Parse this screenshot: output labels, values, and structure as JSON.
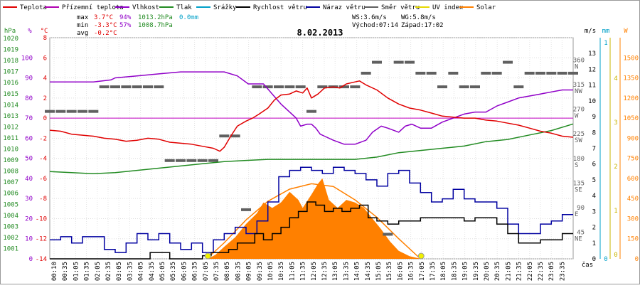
{
  "chart_data": {
    "type": "line",
    "title": "8.02.2013",
    "legend": [
      {
        "label": "Teplota",
        "color": "#e00000"
      },
      {
        "label": "Přízemní teplota",
        "color": "#b000b0"
      },
      {
        "label": "Vlhkost",
        "color": "#9000c8"
      },
      {
        "label": "Tlak",
        "color": "#228b22"
      },
      {
        "label": "Srážky",
        "color": "#00a0c8"
      },
      {
        "label": "Rychlost větru",
        "color": "#000000"
      },
      {
        "label": "Náraz větru",
        "color": "#0000a0"
      },
      {
        "label": "Směr větru",
        "color": "#606060"
      },
      {
        "label": "UV index",
        "color": "#e6d800"
      },
      {
        "label": "Solar",
        "color": "#ff8000"
      }
    ],
    "stats": {
      "max": {
        "label": "max",
        "temp": "3.7°C",
        "hum": "94%",
        "press": "1013.2hPa",
        "rain": "0.0mm"
      },
      "min": {
        "label": "min",
        "temp": "-3.3°C",
        "hum": "57%",
        "press": "1008.7hPa"
      },
      "avg": {
        "label": "avg",
        "temp": "-0.2°C"
      }
    },
    "wind_info": {
      "ws": "WS:3.6m/s",
      "wg": "WG:5.8m/s",
      "sunrise": "Východ:07:14",
      "sunset": "Západ:17:02"
    },
    "axes": {
      "hpa": {
        "label": "hPa",
        "ticks": [
          "1020",
          "1019",
          "1018",
          "1017",
          "1016",
          "1015",
          "1014",
          "1013",
          "1012",
          "1011",
          "1010",
          "1009",
          "1008",
          "1007",
          "1006",
          "1005",
          "1004",
          "1003",
          "1002",
          "1001"
        ],
        "color": "#228b22"
      },
      "pct": {
        "label": "%",
        "ticks": [
          "100",
          "90",
          "80",
          "70",
          "60",
          "50",
          "40",
          "30",
          "20",
          "10",
          "0"
        ],
        "color": "#9000c8"
      },
      "temp": {
        "label": "°C",
        "ticks": [
          "8",
          "6",
          "4",
          "2",
          "0",
          "-2",
          "-4",
          "-6",
          "-8",
          "-10",
          "-12",
          "-14"
        ],
        "color": "#e00000"
      },
      "dir": {
        "ticks": [
          {
            "deg": "360",
            "name": "N"
          },
          {
            "deg": "315",
            "name": "NW"
          },
          {
            "deg": "270",
            "name": "W"
          },
          {
            "deg": "225",
            "name": "SW"
          },
          {
            "deg": "180",
            "name": "S"
          },
          {
            "deg": "135",
            "name": "SE"
          },
          {
            "deg": "90",
            "name": "E"
          },
          {
            "deg": "45",
            "name": "NE"
          },
          {
            "deg": "",
            "name": ""
          }
        ]
      },
      "ms": {
        "label": "m/s",
        "ticks": [
          "13",
          "12",
          "11",
          "10",
          "9",
          "8",
          "7",
          "6",
          "5",
          "4",
          "3",
          "2",
          "1",
          "0"
        ]
      },
      "mm": {
        "label": "mm",
        "ticks": [
          "1",
          "0"
        ],
        "color": "#00a0c8"
      },
      "uv": {
        "ticks": [
          "4",
          "3",
          "2",
          "1",
          "0"
        ],
        "color": "#c8b400"
      },
      "w": {
        "label": "W",
        "ticks": [
          "1500",
          "1350",
          "1200",
          "1050",
          "900",
          "750",
          "600",
          "450",
          "300",
          "150",
          "0"
        ],
        "color": "#ff8000"
      },
      "x_label": "čas",
      "x_ticks": [
        "00:10",
        "00:35",
        "01:05",
        "01:35",
        "02:05",
        "02:35",
        "03:05",
        "03:35",
        "04:05",
        "04:35",
        "05:05",
        "05:35",
        "06:05",
        "06:35",
        "07:05",
        "07:35",
        "08:05",
        "08:35",
        "09:05",
        "09:35",
        "10:05",
        "10:35",
        "11:05",
        "11:35",
        "12:05",
        "12:35",
        "13:05",
        "13:35",
        "14:05",
        "14:35",
        "15:05",
        "15:35",
        "16:05",
        "16:35",
        "17:05",
        "17:35",
        "18:05",
        "18:35",
        "19:05",
        "19:35",
        "20:05",
        "20:35",
        "21:05",
        "21:35",
        "22:05",
        "22:35",
        "23:05",
        "23:35"
      ]
    },
    "xlim": [
      0,
      24
    ],
    "series_units": {
      "temperature": "°C",
      "humidity": "%",
      "pressure": "hPa",
      "wind_speed": "m/s",
      "wind_gust": "m/s",
      "wind_direction": "deg",
      "solar": "W/m2"
    },
    "temperature": [
      [
        0,
        -1.2
      ],
      [
        0.5,
        -1.3
      ],
      [
        1,
        -1.6
      ],
      [
        1.5,
        -1.7
      ],
      [
        2,
        -1.8
      ],
      [
        2.5,
        -2.0
      ],
      [
        3,
        -2.1
      ],
      [
        3.5,
        -2.3
      ],
      [
        4,
        -2.2
      ],
      [
        4.5,
        -2.0
      ],
      [
        5,
        -2.1
      ],
      [
        5.5,
        -2.4
      ],
      [
        6,
        -2.5
      ],
      [
        6.5,
        -2.6
      ],
      [
        7,
        -2.8
      ],
      [
        7.5,
        -3.0
      ],
      [
        7.8,
        -3.3
      ],
      [
        8,
        -2.9
      ],
      [
        8.3,
        -1.8
      ],
      [
        8.6,
        -0.8
      ],
      [
        9,
        -0.3
      ],
      [
        9.3,
        0.0
      ],
      [
        9.6,
        0.4
      ],
      [
        10,
        1.0
      ],
      [
        10.3,
        1.8
      ],
      [
        10.6,
        2.3
      ],
      [
        11,
        2.4
      ],
      [
        11.3,
        2.7
      ],
      [
        11.6,
        2.5
      ],
      [
        11.8,
        3.0
      ],
      [
        12,
        2.0
      ],
      [
        12.3,
        2.4
      ],
      [
        12.6,
        3.0
      ],
      [
        13,
        3.1
      ],
      [
        13.3,
        3.0
      ],
      [
        13.6,
        3.4
      ],
      [
        14,
        3.6
      ],
      [
        14.2,
        3.7
      ],
      [
        14.5,
        3.3
      ],
      [
        15,
        2.8
      ],
      [
        15.5,
        2.0
      ],
      [
        16,
        1.4
      ],
      [
        16.5,
        1.0
      ],
      [
        17,
        0.8
      ],
      [
        17.5,
        0.5
      ],
      [
        18,
        0.2
      ],
      [
        18.5,
        0.1
      ],
      [
        19,
        0.0
      ],
      [
        19.5,
        0.0
      ],
      [
        20,
        -0.2
      ],
      [
        20.5,
        -0.3
      ],
      [
        21,
        -0.5
      ],
      [
        21.5,
        -0.7
      ],
      [
        22,
        -1.0
      ],
      [
        22.5,
        -1.3
      ],
      [
        23,
        -1.5
      ],
      [
        23.5,
        -1.8
      ],
      [
        24,
        -1.9
      ]
    ],
    "humidity": [
      [
        0,
        88
      ],
      [
        1,
        88
      ],
      [
        2,
        88
      ],
      [
        2.8,
        89
      ],
      [
        3,
        90
      ],
      [
        4,
        91
      ],
      [
        5,
        92
      ],
      [
        6,
        93
      ],
      [
        7,
        93
      ],
      [
        8,
        93
      ],
      [
        8.6,
        91
      ],
      [
        9.1,
        87
      ],
      [
        9.8,
        87
      ],
      [
        10.2,
        82
      ],
      [
        10.6,
        77
      ],
      [
        11,
        73
      ],
      [
        11.3,
        70
      ],
      [
        11.5,
        66
      ],
      [
        11.8,
        67
      ],
      [
        12.0,
        67
      ],
      [
        12.2,
        65
      ],
      [
        12.4,
        62
      ],
      [
        12.6,
        61
      ],
      [
        13,
        59
      ],
      [
        13.5,
        57
      ],
      [
        14,
        57
      ],
      [
        14.5,
        59
      ],
      [
        14.8,
        63
      ],
      [
        15.2,
        66
      ],
      [
        15.5,
        65
      ],
      [
        16,
        63
      ],
      [
        16.3,
        66
      ],
      [
        16.6,
        67
      ],
      [
        17,
        65
      ],
      [
        17.5,
        65
      ],
      [
        18,
        68
      ],
      [
        18.5,
        70
      ],
      [
        19,
        72
      ],
      [
        19.5,
        73
      ],
      [
        20,
        73
      ],
      [
        20.5,
        76
      ],
      [
        21,
        78
      ],
      [
        21.5,
        80
      ],
      [
        22,
        81
      ],
      [
        22.5,
        82
      ],
      [
        23,
        83
      ],
      [
        23.5,
        84
      ],
      [
        24,
        84
      ]
    ],
    "pressure": [
      [
        0,
        1008.9
      ],
      [
        1,
        1008.8
      ],
      [
        2,
        1008.7
      ],
      [
        3,
        1008.8
      ],
      [
        4,
        1009.0
      ],
      [
        5,
        1009.2
      ],
      [
        6,
        1009.4
      ],
      [
        7,
        1009.6
      ],
      [
        8,
        1009.8
      ],
      [
        9,
        1009.9
      ],
      [
        10,
        1010.0
      ],
      [
        11,
        1010.0
      ],
      [
        12,
        1010.0
      ],
      [
        13,
        1010.0
      ],
      [
        14,
        1010.0
      ],
      [
        15,
        1010.2
      ],
      [
        16,
        1010.6
      ],
      [
        17,
        1010.8
      ],
      [
        18,
        1011.0
      ],
      [
        19,
        1011.2
      ],
      [
        20,
        1011.6
      ],
      [
        21,
        1011.8
      ],
      [
        22,
        1012.2
      ],
      [
        23,
        1012.6
      ],
      [
        24,
        1013.2
      ]
    ],
    "wind_speed": [
      [
        0,
        0
      ],
      [
        1,
        0
      ],
      [
        2,
        0
      ],
      [
        3,
        0
      ],
      [
        4,
        0
      ],
      [
        4.6,
        0.4
      ],
      [
        5,
        0.4
      ],
      [
        5.5,
        0
      ],
      [
        6,
        0
      ],
      [
        6.5,
        0
      ],
      [
        7,
        0.2
      ],
      [
        7.4,
        0.4
      ],
      [
        7.8,
        0.4
      ],
      [
        8.2,
        0.6
      ],
      [
        8.6,
        1.0
      ],
      [
        9,
        1.0
      ],
      [
        9.4,
        1.6
      ],
      [
        9.8,
        1.2
      ],
      [
        10.2,
        1.6
      ],
      [
        10.6,
        2.0
      ],
      [
        11,
        2.6
      ],
      [
        11.4,
        3.0
      ],
      [
        11.8,
        3.6
      ],
      [
        12.2,
        3.4
      ],
      [
        12.6,
        3.0
      ],
      [
        13,
        3.2
      ],
      [
        13.4,
        3.0
      ],
      [
        13.8,
        3.2
      ],
      [
        14.2,
        3.4
      ],
      [
        14.6,
        2.6
      ],
      [
        15,
        2.4
      ],
      [
        15.5,
        2.2
      ],
      [
        16,
        2.4
      ],
      [
        16.5,
        2.4
      ],
      [
        17,
        2.6
      ],
      [
        17.5,
        2.6
      ],
      [
        18,
        2.6
      ],
      [
        18.5,
        2.6
      ],
      [
        19,
        2.4
      ],
      [
        19.5,
        2.6
      ],
      [
        20,
        2.6
      ],
      [
        20.5,
        2.2
      ],
      [
        21,
        1.6
      ],
      [
        21.5,
        1.0
      ],
      [
        22,
        1.0
      ],
      [
        22.5,
        1.2
      ],
      [
        23,
        1.2
      ],
      [
        23.5,
        1.6
      ],
      [
        24,
        1.6
      ]
    ],
    "wind_gust": [
      [
        0,
        1.2
      ],
      [
        0.5,
        1.4
      ],
      [
        1,
        1.0
      ],
      [
        1.5,
        1.4
      ],
      [
        2,
        1.4
      ],
      [
        2.5,
        0.6
      ],
      [
        3,
        0.4
      ],
      [
        3.5,
        1.0
      ],
      [
        4,
        1.6
      ],
      [
        4.5,
        1.2
      ],
      [
        5,
        1.6
      ],
      [
        5.5,
        1.0
      ],
      [
        6,
        0.6
      ],
      [
        6.5,
        1.0
      ],
      [
        7,
        0.4
      ],
      [
        7.5,
        1.2
      ],
      [
        8,
        1.6
      ],
      [
        8.5,
        2.0
      ],
      [
        9,
        1.6
      ],
      [
        9.5,
        2.4
      ],
      [
        10,
        3.6
      ],
      [
        10.5,
        5.2
      ],
      [
        11,
        5.6
      ],
      [
        11.5,
        5.8
      ],
      [
        12,
        5.6
      ],
      [
        12.5,
        5.4
      ],
      [
        13,
        5.8
      ],
      [
        13.5,
        5.6
      ],
      [
        14,
        5.4
      ],
      [
        14.5,
        5.0
      ],
      [
        15,
        4.6
      ],
      [
        15.5,
        5.4
      ],
      [
        16,
        5.6
      ],
      [
        16.5,
        4.8
      ],
      [
        17,
        4.2
      ],
      [
        17.5,
        3.6
      ],
      [
        18,
        3.8
      ],
      [
        18.5,
        4.4
      ],
      [
        19,
        3.8
      ],
      [
        19.5,
        3.6
      ],
      [
        20,
        3.6
      ],
      [
        20.5,
        3.2
      ],
      [
        21,
        2.2
      ],
      [
        21.5,
        1.6
      ],
      [
        22,
        1.6
      ],
      [
        22.5,
        2.2
      ],
      [
        23,
        2.4
      ],
      [
        23.5,
        2.8
      ],
      [
        24,
        2.8
      ]
    ],
    "wind_direction": [
      [
        0,
        270
      ],
      [
        0.5,
        270
      ],
      [
        1,
        270
      ],
      [
        1.5,
        270
      ],
      [
        2,
        270
      ],
      [
        2.5,
        315
      ],
      [
        3,
        315
      ],
      [
        3.5,
        315
      ],
      [
        4,
        315
      ],
      [
        4.5,
        315
      ],
      [
        5,
        315
      ],
      [
        5.5,
        180
      ],
      [
        6,
        180
      ],
      [
        6.5,
        180
      ],
      [
        7,
        180
      ],
      [
        7.5,
        180
      ],
      [
        8,
        225
      ],
      [
        8.5,
        225
      ],
      [
        9,
        90
      ],
      [
        9.5,
        315
      ],
      [
        10,
        315
      ],
      [
        10.5,
        315
      ],
      [
        11,
        315
      ],
      [
        11.5,
        315
      ],
      [
        12,
        270
      ],
      [
        12.5,
        315
      ],
      [
        13,
        315
      ],
      [
        13.5,
        315
      ],
      [
        14,
        315
      ],
      [
        14.5,
        340
      ],
      [
        15,
        360
      ],
      [
        15.5,
        45
      ],
      [
        16,
        360
      ],
      [
        16.5,
        360
      ],
      [
        17,
        340
      ],
      [
        17.5,
        340
      ],
      [
        18,
        315
      ],
      [
        18.5,
        340
      ],
      [
        19,
        315
      ],
      [
        19.5,
        315
      ],
      [
        20,
        340
      ],
      [
        20.5,
        340
      ],
      [
        21,
        360
      ],
      [
        21.5,
        315
      ],
      [
        22,
        340
      ],
      [
        22.5,
        340
      ],
      [
        23,
        340
      ],
      [
        23.5,
        340
      ],
      [
        24,
        340
      ]
    ],
    "solar": [
      [
        7.25,
        0
      ],
      [
        7.6,
        30
      ],
      [
        8,
        90
      ],
      [
        8.5,
        160
      ],
      [
        9,
        260
      ],
      [
        9.5,
        340
      ],
      [
        9.8,
        420
      ],
      [
        10.2,
        380
      ],
      [
        10.6,
        420
      ],
      [
        11,
        500
      ],
      [
        11.4,
        440
      ],
      [
        11.6,
        380
      ],
      [
        12,
        480
      ],
      [
        12.3,
        560
      ],
      [
        12.5,
        600
      ],
      [
        12.8,
        440
      ],
      [
        13.2,
        380
      ],
      [
        13.6,
        440
      ],
      [
        14,
        420
      ],
      [
        14.4,
        380
      ],
      [
        14.8,
        300
      ],
      [
        15.2,
        220
      ],
      [
        15.6,
        130
      ],
      [
        16,
        60
      ],
      [
        16.5,
        20
      ],
      [
        17.03,
        0
      ]
    ],
    "solar_theoretical": [
      [
        7.2,
        0
      ],
      [
        8,
        120
      ],
      [
        9,
        290
      ],
      [
        10,
        430
      ],
      [
        11,
        520
      ],
      [
        12,
        560
      ],
      [
        13,
        540
      ],
      [
        14,
        440
      ],
      [
        15,
        310
      ],
      [
        16,
        150
      ],
      [
        17,
        0
      ]
    ],
    "uv_index": [
      [
        0,
        0
      ],
      [
        7.2,
        0
      ],
      [
        12,
        0
      ],
      [
        17,
        0
      ],
      [
        24,
        0
      ]
    ]
  }
}
